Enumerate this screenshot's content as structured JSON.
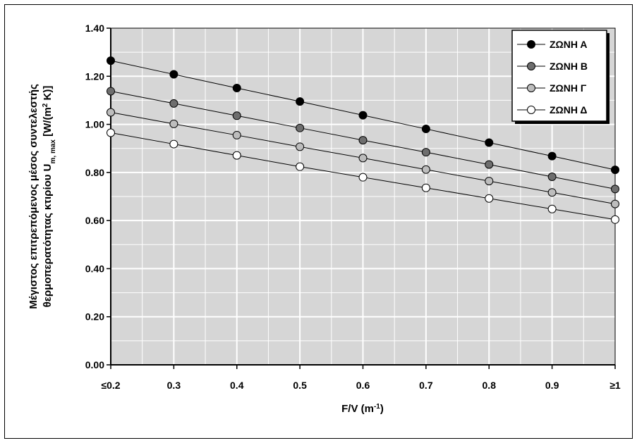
{
  "chart_data": {
    "type": "line",
    "x": [
      0.2,
      0.3,
      0.4,
      0.5,
      0.6,
      0.7,
      0.8,
      0.9,
      1.0
    ],
    "x_tick_labels": [
      "≤0.2",
      "0.3",
      "0.4",
      "0.5",
      "0.6",
      "0.7",
      "0.8",
      "0.9",
      "≥1"
    ],
    "y_tick_labels": [
      "0.00",
      "0.20",
      "0.40",
      "0.60",
      "0.80",
      "1.00",
      "1.20",
      "1.40"
    ],
    "ylim": [
      0,
      1.4
    ],
    "xlim": [
      0.2,
      1.0
    ],
    "xlabel": "F/V (m",
    "xlabel_sup": "-1",
    "xlabel_tail": ")",
    "ylabel_line1": "Μέγιστος επιτρεπόμενος μέσος συντελεστής",
    "ylabel_line2_a": "θερμοπερατότητας κτιρίου U",
    "ylabel_line2_sub": "m, max",
    "ylabel_line2_b": " [W/(m",
    "ylabel_line2_sup": "2",
    "ylabel_line2_c": " K)]",
    "grid": true,
    "legend_position": "top-right",
    "series": [
      {
        "name": "ΖΩΝΗ Α",
        "color": "#000000",
        "values": [
          1.265,
          1.208,
          1.151,
          1.095,
          1.038,
          0.981,
          0.924,
          0.868,
          0.811
        ]
      },
      {
        "name": "ΖΩΝΗ Β",
        "color": "#6e6e6e",
        "values": [
          1.138,
          1.087,
          1.036,
          0.985,
          0.934,
          0.884,
          0.833,
          0.782,
          0.731
        ]
      },
      {
        "name": "ΖΩΝΗ Γ",
        "color": "#bdbdbd",
        "values": [
          1.05,
          1.002,
          0.955,
          0.907,
          0.86,
          0.812,
          0.764,
          0.717,
          0.669
        ]
      },
      {
        "name": "ΖΩΝΗ Δ",
        "color": "#ffffff",
        "values": [
          0.965,
          0.918,
          0.871,
          0.824,
          0.78,
          0.736,
          0.692,
          0.648,
          0.604
        ]
      }
    ]
  }
}
